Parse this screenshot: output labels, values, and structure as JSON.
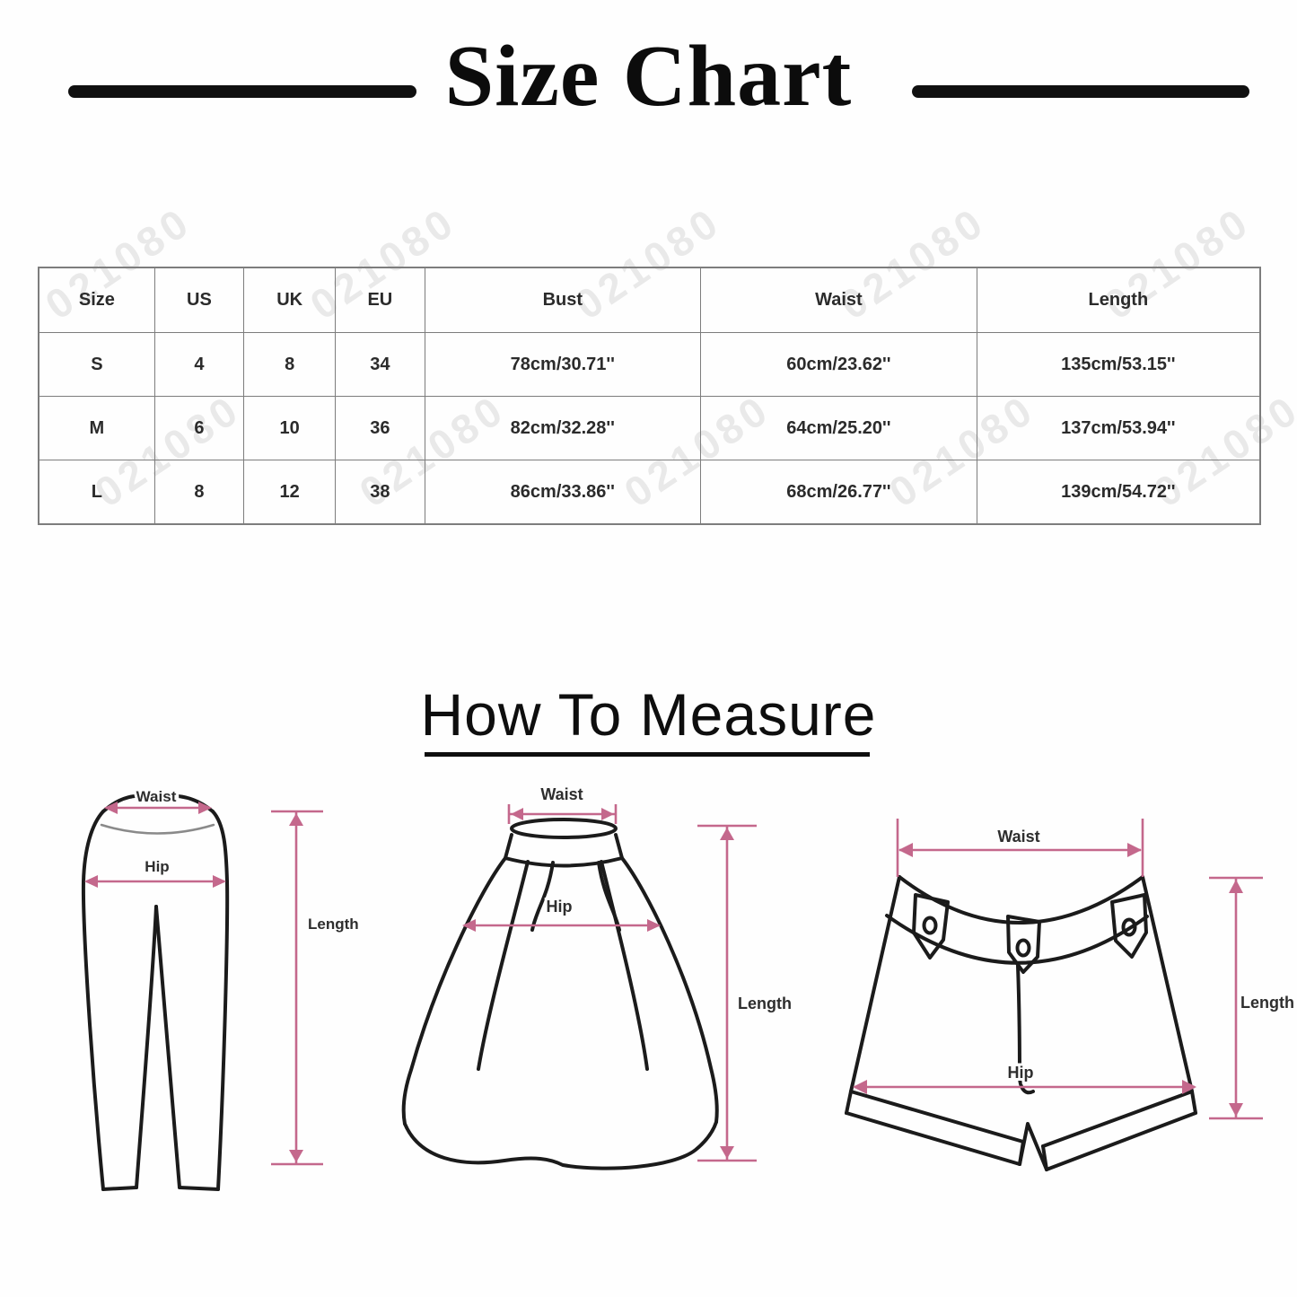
{
  "title": "Size Chart",
  "how_to_measure": "How To Measure",
  "watermark_text": "021080",
  "size_table": {
    "headers": [
      "Size",
      "US",
      "UK",
      "EU",
      "Bust",
      "Waist",
      "Length"
    ],
    "rows": [
      [
        "S",
        "4",
        "8",
        "34",
        "78cm/30.71''",
        "60cm/23.62''",
        "135cm/53.15''"
      ],
      [
        "M",
        "6",
        "10",
        "36",
        "82cm/32.28''",
        "64cm/25.20''",
        "137cm/53.94''"
      ],
      [
        "L",
        "8",
        "12",
        "38",
        "86cm/33.86''",
        "68cm/26.77''",
        "139cm/54.72''"
      ]
    ]
  },
  "diagrams": {
    "pants": {
      "waist": "Waist",
      "hip": "Hip",
      "length": "Length"
    },
    "skirt": {
      "waist": "Waist",
      "hip": "Hip",
      "length": "Length"
    },
    "shorts": {
      "waist": "Waist",
      "hip": "Hip",
      "length": "Length"
    }
  },
  "colors": {
    "accent_pink": "#c4688c",
    "line_ink": "#1b1b1b",
    "table_border": "#7d7d7d",
    "watermark_gray": "#d9d9d9"
  }
}
